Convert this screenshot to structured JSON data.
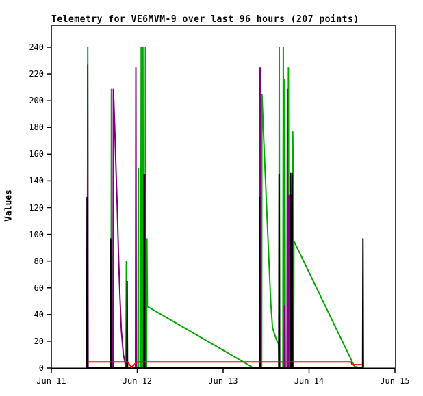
{
  "chart_data": {
    "type": "line",
    "title": "Telemetry for VE6MVM-9 over last 96 hours (207 points)",
    "xlabel": "",
    "ylabel": "Values",
    "x_axis": {
      "tick_labels": [
        "Jun 11",
        "Jun 12",
        "Jun 13",
        "Jun 14",
        "Jun 15"
      ],
      "range_days": [
        0,
        4
      ],
      "unit": "days since Jun 11"
    },
    "y_axis": {
      "min": 0,
      "tick_max": 240,
      "step": 20,
      "tick_values": [
        0,
        20,
        40,
        60,
        80,
        100,
        120,
        140,
        160,
        180,
        200,
        220,
        240
      ]
    },
    "grid": false,
    "legend": "none",
    "colors": {
      "green": "#00AA00",
      "purple": "#800080",
      "black": "#000000",
      "red": "#FF0000",
      "axis": "#404040"
    },
    "series": [
      {
        "name": "green",
        "color": "#00AA00",
        "points": [
          [
            0.42,
            0
          ],
          [
            0.424,
            240
          ],
          [
            0.428,
            0
          ],
          [
            0.695,
            0
          ],
          [
            0.7,
            209
          ],
          [
            0.706,
            0
          ],
          [
            0.868,
            0
          ],
          [
            0.873,
            80
          ],
          [
            0.878,
            0
          ],
          [
            1.008,
            0
          ],
          [
            1.012,
            150
          ],
          [
            1.016,
            0
          ],
          [
            1.04,
            0
          ],
          [
            1.046,
            240
          ],
          [
            1.052,
            0
          ],
          [
            1.062,
            0
          ],
          [
            1.066,
            240
          ],
          [
            1.072,
            0
          ],
          [
            1.092,
            0
          ],
          [
            1.096,
            240
          ],
          [
            1.102,
            0
          ],
          [
            1.108,
            0
          ],
          [
            1.112,
            97
          ],
          [
            1.118,
            46
          ],
          [
            2.33,
            1
          ],
          [
            2.34,
            0
          ],
          [
            2.448,
            0
          ],
          [
            2.452,
            205
          ],
          [
            2.465,
            183
          ],
          [
            2.48,
            160
          ],
          [
            2.495,
            138
          ],
          [
            2.51,
            115
          ],
          [
            2.525,
            92
          ],
          [
            2.54,
            70
          ],
          [
            2.555,
            48
          ],
          [
            2.575,
            30
          ],
          [
            2.615,
            22
          ],
          [
            2.645,
            18
          ],
          [
            2.65,
            2
          ],
          [
            2.653,
            240
          ],
          [
            2.658,
            0
          ],
          [
            2.696,
            0
          ],
          [
            2.7,
            240
          ],
          [
            2.706,
            57
          ],
          [
            2.71,
            0
          ],
          [
            2.714,
            0
          ],
          [
            2.718,
            216
          ],
          [
            2.724,
            0
          ],
          [
            2.756,
            0
          ],
          [
            2.76,
            225
          ],
          [
            2.766,
            0
          ],
          [
            2.806,
            0
          ],
          [
            2.81,
            177
          ],
          [
            2.816,
            145
          ],
          [
            2.82,
            0
          ],
          [
            2.824,
            95
          ],
          [
            3.53,
            1
          ],
          [
            3.63,
            0
          ]
        ]
      },
      {
        "name": "purple",
        "color": "#800080",
        "points": [
          [
            0.42,
            0
          ],
          [
            0.423,
            227
          ],
          [
            0.427,
            0
          ],
          [
            0.718,
            0
          ],
          [
            0.722,
            209
          ],
          [
            0.738,
            180
          ],
          [
            0.752,
            150
          ],
          [
            0.768,
            118
          ],
          [
            0.782,
            85
          ],
          [
            0.798,
            55
          ],
          [
            0.815,
            28
          ],
          [
            0.838,
            10
          ],
          [
            0.858,
            4
          ],
          [
            0.862,
            0
          ],
          [
            0.98,
            0
          ],
          [
            0.984,
            225
          ],
          [
            0.989,
            0
          ],
          [
            1.09,
            0
          ],
          [
            1.094,
            145
          ],
          [
            1.099,
            0
          ],
          [
            2.426,
            0
          ],
          [
            2.43,
            225
          ],
          [
            2.435,
            0
          ],
          [
            2.712,
            0
          ],
          [
            2.716,
            47
          ],
          [
            2.72,
            0
          ],
          [
            2.744,
            0
          ],
          [
            2.748,
            209
          ],
          [
            2.753,
            0
          ],
          [
            2.762,
            0
          ],
          [
            2.766,
            129
          ],
          [
            2.788,
            129
          ],
          [
            2.793,
            0
          ],
          [
            3.63,
            0
          ]
        ]
      },
      {
        "name": "black",
        "color": "#000000",
        "points": [
          [
            0.413,
            0
          ],
          [
            0.416,
            128
          ],
          [
            0.42,
            0
          ],
          [
            0.688,
            0
          ],
          [
            0.692,
            97
          ],
          [
            0.697,
            0
          ],
          [
            0.878,
            0
          ],
          [
            0.882,
            65
          ],
          [
            0.887,
            0
          ],
          [
            1.076,
            0
          ],
          [
            1.08,
            145
          ],
          [
            1.085,
            0
          ],
          [
            2.422,
            0
          ],
          [
            2.425,
            128
          ],
          [
            2.429,
            0
          ],
          [
            2.648,
            0
          ],
          [
            2.652,
            145
          ],
          [
            2.657,
            0
          ],
          [
            2.782,
            0
          ],
          [
            2.786,
            146
          ],
          [
            2.791,
            0
          ],
          [
            2.8,
            0
          ],
          [
            2.804,
            146
          ],
          [
            2.809,
            0
          ],
          [
            3.624,
            0
          ],
          [
            3.628,
            97
          ],
          [
            3.632,
            0
          ]
        ]
      },
      {
        "name": "red",
        "color": "#FF0000",
        "points": [
          [
            0.42,
            4.5
          ],
          [
            0.885,
            4.5
          ],
          [
            0.935,
            0.6
          ],
          [
            0.985,
            3.8
          ],
          [
            1.01,
            4.5
          ],
          [
            3.492,
            4.5
          ],
          [
            3.5,
            2.5
          ],
          [
            3.615,
            2.5
          ]
        ]
      }
    ]
  }
}
